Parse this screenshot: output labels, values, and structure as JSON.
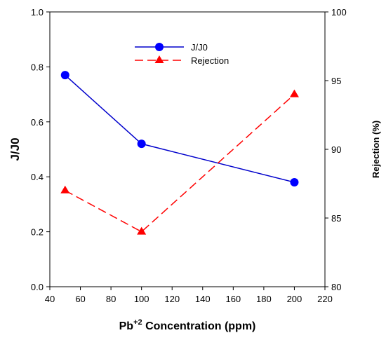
{
  "chart_data": {
    "type": "line",
    "x": [
      50,
      100,
      200
    ],
    "xlabel": "Concentration (ppm)",
    "xlabel_base": "Pb",
    "xlabel_superscript": "+2",
    "ylabel_left": "J/J0",
    "ylabel_right": "Rejection (%)",
    "xlim": [
      40,
      220
    ],
    "x_ticks": [
      "40",
      "60",
      "80",
      "100",
      "120",
      "140",
      "160",
      "180",
      "200",
      "220"
    ],
    "ylim_left": [
      0,
      1
    ],
    "y_left_ticks": [
      "0.0",
      "0.2",
      "0.4",
      "0.6",
      "0.8",
      "1.0"
    ],
    "ylim_right": [
      80,
      100
    ],
    "y_right_ticks": [
      "80",
      "85",
      "90",
      "95",
      "100"
    ],
    "grid": false,
    "legend_position": "top-center",
    "series": [
      {
        "name": "J/J0",
        "axis": "left",
        "values": [
          0.77,
          0.52,
          0.38
        ],
        "color": "#0000cc",
        "marker": "circle",
        "line": "solid"
      },
      {
        "name": "Rejection",
        "axis": "right",
        "values": [
          87,
          84,
          94
        ],
        "color": "#ff0000",
        "marker": "triangle",
        "line": "dashed"
      }
    ]
  }
}
